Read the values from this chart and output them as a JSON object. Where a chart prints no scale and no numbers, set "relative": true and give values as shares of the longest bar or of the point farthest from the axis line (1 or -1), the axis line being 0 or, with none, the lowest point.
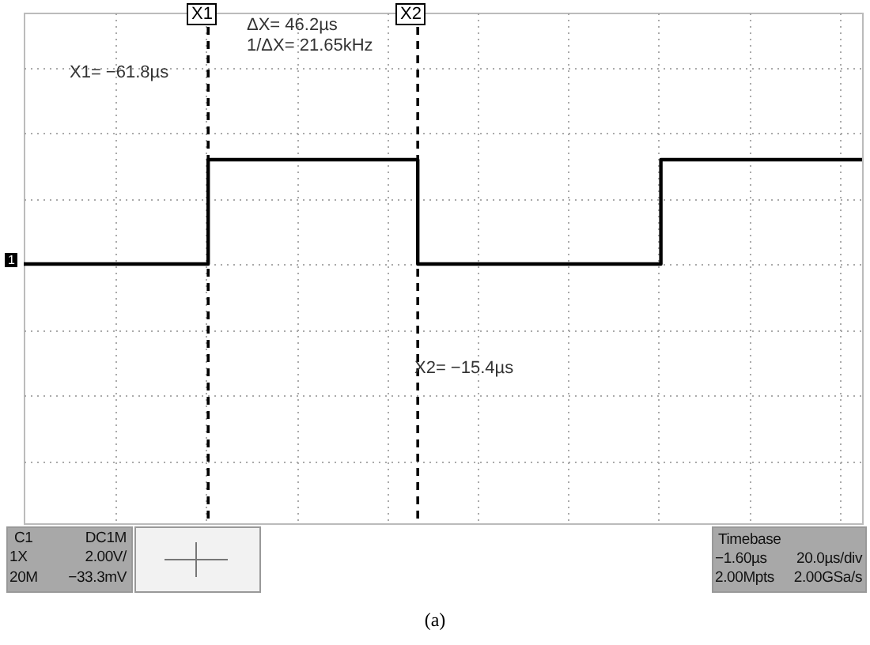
{
  "chart_data": {
    "type": "step",
    "title": "(a)",
    "relative": true,
    "categories": [
      null,
      null,
      null,
      null,
      null,
      null,
      null,
      null,
      null,
      null,
      null,
      null,
      null,
      null,
      null,
      null,
      null,
      null,
      null,
      null,
      null,
      null,
      null,
      null,
      null,
      null,
      null,
      null,
      null,
      null,
      null,
      null,
      null,
      null,
      null,
      null,
      null,
      null,
      null,
      null,
      null,
      null,
      null,
      null,
      null,
      null,
      null,
      null,
      null,
      null,
      null,
      null,
      null,
      null,
      null,
      null,
      null,
      null,
      null,
      null,
      null,
      null,
      null,
      null,
      null,
      null,
      null,
      null,
      null,
      null,
      null,
      null,
      null,
      null,
      null,
      null,
      null,
      null,
      null,
      null,
      null,
      null,
      null,
      null,
      null,
      null,
      null,
      null,
      null,
      null,
      null,
      null,
      null,
      null,
      null,
      null,
      null,
      null,
      null,
      null,
      null
    ],
    "tick_labels": false,
    "grid": true,
    "line_style": "solid",
    "marker": "none",
    "series": [
      {
        "color": "#000000",
        "values": [
          0,
          0,
          0,
          0,
          0,
          0,
          0,
          0,
          0,
          0,
          0,
          0,
          0,
          0,
          0,
          0,
          0,
          0,
          0,
          0,
          0,
          0,
          1,
          1,
          1,
          1,
          1,
          1,
          1,
          1,
          1,
          1,
          1,
          1,
          1,
          1,
          1,
          1,
          1,
          1,
          1,
          1,
          1,
          1,
          1,
          1,
          1,
          0,
          0,
          0,
          0,
          0,
          0,
          0,
          0,
          0,
          0,
          0,
          0,
          0,
          0,
          0,
          0,
          0,
          0,
          0,
          0,
          0,
          0,
          0,
          0,
          0,
          0,
          0,
          0,
          0,
          1,
          1,
          1,
          1,
          1,
          1,
          1,
          1,
          1,
          1,
          1,
          1,
          1,
          1,
          1,
          1,
          1,
          1,
          1,
          1,
          1,
          1,
          1,
          1,
          1
        ]
      }
    ],
    "annotations": [
      "ΔX= 46.2µs",
      "1/ΔX= 21.65kHz",
      "X1",
      "X2",
      "X1= −61.8µs",
      "X2= −15.4µs",
      "1",
      "C1",
      "DC1M",
      "1X",
      "2.00V/",
      "20M",
      "−33.3mV",
      "Timebase",
      "−1.60µs",
      "20.0µs/div",
      "2.00Mpts",
      "2.00GSa/s"
    ]
  }
}
